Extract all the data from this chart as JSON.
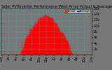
{
  "title": "Solar PV/Inverter Performance West Array Actual & Average Power Output",
  "bg_color": "#787878",
  "plot_bg": "#787878",
  "fill_color": "#ff0000",
  "line_color": "#cc0000",
  "avg_line_color": "#ff2020",
  "grid_color": "#00cccc",
  "text_color": "#000000",
  "legend_actual_color": "#ff0000",
  "legend_avg_color": "#0000ff",
  "xlim": [
    0,
    96
  ],
  "ylim": [
    0,
    16000
  ],
  "yticks": [
    2000,
    4000,
    6000,
    8000,
    10000,
    12000,
    14000,
    16000
  ],
  "ytick_labels": [
    "2k",
    "4k",
    "6k",
    "8k",
    "10k",
    "12k",
    "14k",
    "16k"
  ],
  "tick_fontsize": 3.5,
  "title_fontsize": 3.8
}
